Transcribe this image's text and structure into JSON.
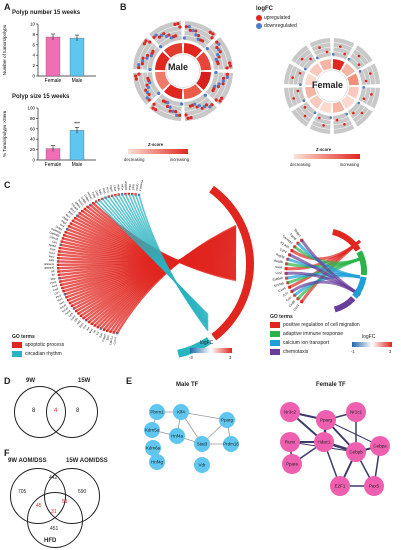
{
  "panels": {
    "A": "A",
    "B": "B",
    "C": "C",
    "D": "D",
    "E": "E",
    "F": "F"
  },
  "panelA": {
    "chart_data": [
      {
        "type": "bar",
        "title": "Polyp number 15 weeks",
        "ylabel": "Number of tumors/polyps",
        "categories": [
          "Female",
          "Male"
        ],
        "values": [
          7.5,
          7.3
        ],
        "ylim": [
          0,
          10
        ],
        "yticks": [
          "0",
          "2",
          "4",
          "6",
          "8",
          "10"
        ],
        "colors": [
          "#f06fb4",
          "#5fc6ef"
        ]
      },
      {
        "type": "bar",
        "title": "Polyp size 15 weeks",
        "ylabel": "% Tumor/polyps >2mm",
        "categories": [
          "Female",
          "Male"
        ],
        "values": [
          22,
          57
        ],
        "ylim": [
          0,
          100
        ],
        "yticks": [
          "0",
          "20",
          "40",
          "60",
          "80",
          "100"
        ],
        "annotation": "***",
        "colors": [
          "#f06fb4",
          "#5fc6ef"
        ]
      }
    ]
  },
  "panelB": {
    "male_label": "Male",
    "female_label": "Female",
    "legend": {
      "title": "logFC",
      "up": "upregulated",
      "down": "downregulated",
      "up_color": "#e0261f",
      "down_color": "#4f7ccb"
    },
    "male_terms": [
      "negative regulation of canonical Wnt signaling pathway",
      "angiogenesis",
      "positive regulation of signaling",
      "inflammatory response",
      "response to lipopolysaccharide",
      "response to peptide",
      "apoptotic process",
      "Wnt"
    ],
    "female_terms": [
      "chemotaxis",
      "positive regulation of cell migration",
      "calcium ion transport",
      "adaptive immune response"
    ],
    "zscore": {
      "title": "Z-score",
      "decreasing": "decreasing",
      "increasing": "increasing"
    }
  },
  "panelC": {
    "left_genes": [
      "Ccnd1",
      "Cdkn1a",
      "Bcl2",
      "Casp3",
      "Bax",
      "Tnf",
      "Il6",
      "Myc",
      "Jun",
      "Fos",
      "Egr1",
      "Atf3",
      "Klf4",
      "Sox9",
      "Lgr5",
      "Axin2",
      "Nr1d1",
      "Nr1d2",
      "Per1",
      "Per2",
      "Per3",
      "Cry1",
      "Cry2",
      "Arntl",
      "Clock",
      "Dbp",
      "Tef",
      "Hlf",
      "Bhlhe40",
      "Bhlhe41",
      "Nfil3",
      "Rorc",
      "Rora",
      "Ciart",
      "Npas2",
      "Cipc",
      "Cdkn1b",
      "Gadd45b",
      "Gadd45g",
      "Dusp1",
      "Ier3",
      "Btg2",
      "Zfp36",
      "Mcl1",
      "Bcl3",
      "Birc3",
      "Tnfaip3",
      "Nfkbia",
      "Socs3",
      "Cebpb",
      "Cebpd",
      "Hmox1",
      "Txnip",
      "Ddit4",
      "Sgk1",
      "Pim1",
      "Pim3",
      "Ptgs2",
      "Cd44",
      "Vegfa",
      "Hif1a",
      "Angptl4",
      "Pdk4",
      "Ucp2",
      "Cpt1a",
      "Ppargc1a"
    ],
    "right_genes": [
      "Cxcl1",
      "Cxcl5",
      "Ccl2",
      "Ccl7",
      "Cxcr4",
      "S100a8",
      "S100a9",
      "Lcn2",
      "Saa3",
      "Reg3b",
      "Reg3g",
      "Cd74",
      "H2-Ab1",
      "Cacna1d",
      "Trpm6",
      "Slc8a1"
    ],
    "left_legend": {
      "title": "GO terms",
      "items": [
        {
          "label": "apoptotic process",
          "color": "#e0261f"
        },
        {
          "label": "circadian rhythm",
          "color": "#2ab3c0"
        }
      ],
      "logfc_title": "logFC",
      "logfc_min": "-3",
      "logfc_max": "3"
    },
    "right_legend": {
      "title": "GO terms",
      "items": [
        {
          "label": "positive regulation of cell migration",
          "color": "#e0261f"
        },
        {
          "label": "adaptive immune response",
          "color": "#2bb34a"
        },
        {
          "label": "calcium ion transport",
          "color": "#1f9fd8"
        },
        {
          "label": "chemotaxis",
          "color": "#6a3d9a"
        }
      ],
      "logfc_title": "logFC",
      "logfc_min": "-1",
      "logfc_max": "3"
    }
  },
  "panelD": {
    "left_label": "9W",
    "right_label": "15W",
    "left_only": "8",
    "overlap": "4",
    "right_only": "8"
  },
  "panelE": {
    "male_title": "Male TF",
    "female_title": "Female TF",
    "male_nodes": [
      "Pbrm1",
      "Klf4",
      "Kdm5a",
      "Pparg",
      "Hnf4a",
      "Vdr",
      "Stat3",
      "Hnf4g",
      "Kdm6a",
      "Prdm16"
    ],
    "female_nodes": [
      "Nr3c2",
      "Nr1c1",
      "Pparg",
      "Runx",
      "Hdac1",
      "Cebpb",
      "Ppara",
      "Cebpa",
      "E2F1",
      "Pax5"
    ],
    "male_color": "#5fc6ef",
    "female_color": "#ef5fb0"
  },
  "panelF": {
    "set1": "9W AOM/DSS",
    "set2": "15W AOM/DSS",
    "set3": "HFD",
    "only1": "705",
    "only2": "590",
    "only3": "451",
    "s12": "442",
    "s13": "45",
    "s23": "51",
    "all": "31"
  }
}
